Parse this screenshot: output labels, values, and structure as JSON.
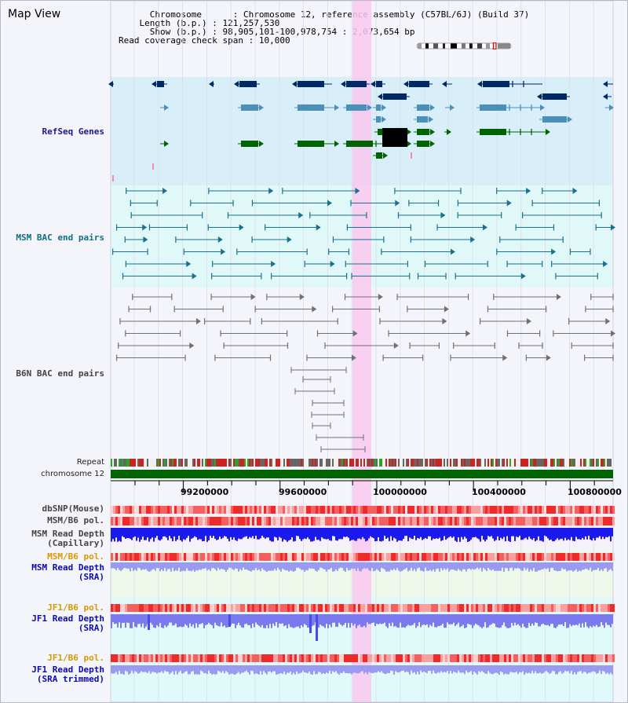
{
  "view_title": "Map View",
  "info": {
    "chromosome_key": "Chromosome",
    "chromosome_value": "Chromosome 12, reference assembly (C57BL/6J) (Build 37)",
    "length_key": "Length (b.p.)",
    "length_value": "121,257,530",
    "show_key": "Show (b.p.)",
    "show_value": "98,905,101-100,978,754 : 2,073,654 bp",
    "span_key": "Read coverage check span",
    "span_value": "10,000"
  },
  "tracks": {
    "refseq": "RefSeq Genes",
    "msm_bac": "MSM BAC end pairs",
    "b6n_bac": "B6N BAC end pairs",
    "repeat": "Repeat",
    "chromosome": "chromosome 12",
    "dbsnp": "dbSNP(Mouse)",
    "msm_b6_pol_1": "MSM/B6 pol.",
    "msm_depth_cap_1": "MSM Read Depth",
    "msm_depth_cap_2": "(Capillary)",
    "msm_b6_pol_2": "MSM/B6 pol.",
    "msm_depth_sra_1": "MSM Read Depth",
    "msm_depth_sra_2": "(SRA)",
    "jf1_b6_pol_1": "JF1/B6 pol.",
    "jf1_depth_sra_1": "JF1 Read Depth",
    "jf1_depth_sra_2": "(SRA)",
    "jf1_b6_pol_2": "JF1/B6 pol.",
    "jf1_depth_trim_1": "JF1 Read Depth",
    "jf1_depth_trim_2": "(SRA trimmed)"
  },
  "axis": {
    "ticks": [
      "99200000",
      "99600000",
      "100000000",
      "100400000",
      "100800000"
    ]
  },
  "colors": {
    "gene_navy": "#002a66",
    "gene_blue": "#4a90b8",
    "gene_green": "#006400",
    "msm_teal": "#1a7090",
    "b6n_gray": "#707070",
    "highlight": "#f9c8f0",
    "chrom_bar": "#006400"
  },
  "icons": {
    "ideogram": "chromosome-ideogram-icon"
  }
}
